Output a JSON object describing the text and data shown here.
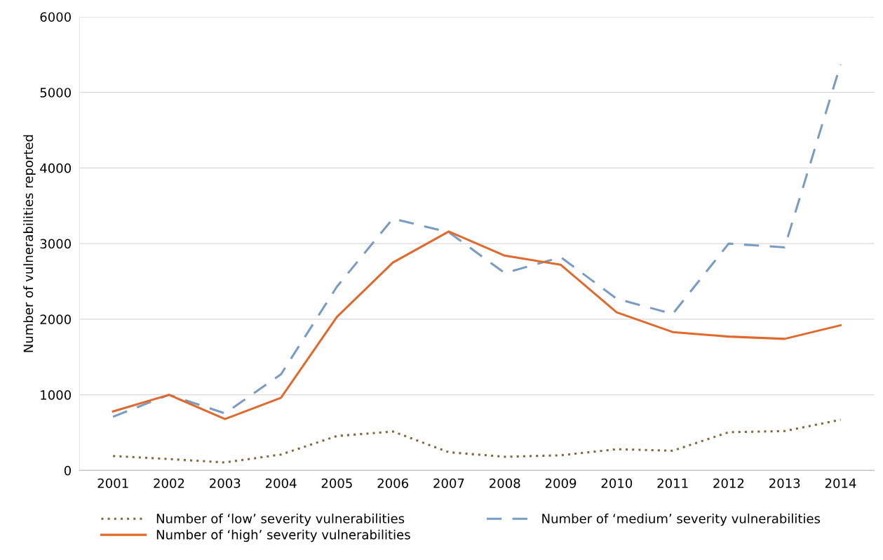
{
  "chart_data": {
    "type": "line",
    "ylabel": "Number of vulnerabilities reported",
    "categories": [
      "2001",
      "2002",
      "2003",
      "2004",
      "2005",
      "2006",
      "2007",
      "2008",
      "2009",
      "2010",
      "2011",
      "2012",
      "2013",
      "2014"
    ],
    "series": [
      {
        "name": "Number of ‘low’ severity vulnerabilities",
        "color": "#7f6a3d",
        "line_style": "dotted",
        "values": [
          190,
          150,
          105,
          210,
          455,
          515,
          240,
          180,
          200,
          280,
          260,
          505,
          520,
          670
        ]
      },
      {
        "name": "Number of ‘medium’ severity vulnerabilities",
        "color": "#7a9cc0",
        "line_style": "dashed",
        "values": [
          710,
          1000,
          755,
          1270,
          2430,
          3330,
          3150,
          2610,
          2820,
          2270,
          2070,
          3000,
          2950,
          5370
        ]
      },
      {
        "name": "Number of ‘high’ severity vulnerabilities",
        "color": "#e06a2e",
        "line_style": "solid",
        "values": [
          780,
          1000,
          680,
          960,
          2030,
          2750,
          3160,
          2840,
          2720,
          2090,
          1830,
          1770,
          1740,
          1920
        ]
      }
    ],
    "ylim": [
      0,
      6000
    ],
    "yticks": [
      0,
      1000,
      2000,
      3000,
      4000,
      5000,
      6000
    ],
    "grid": "y",
    "legend": "bottom",
    "marker": "none"
  }
}
